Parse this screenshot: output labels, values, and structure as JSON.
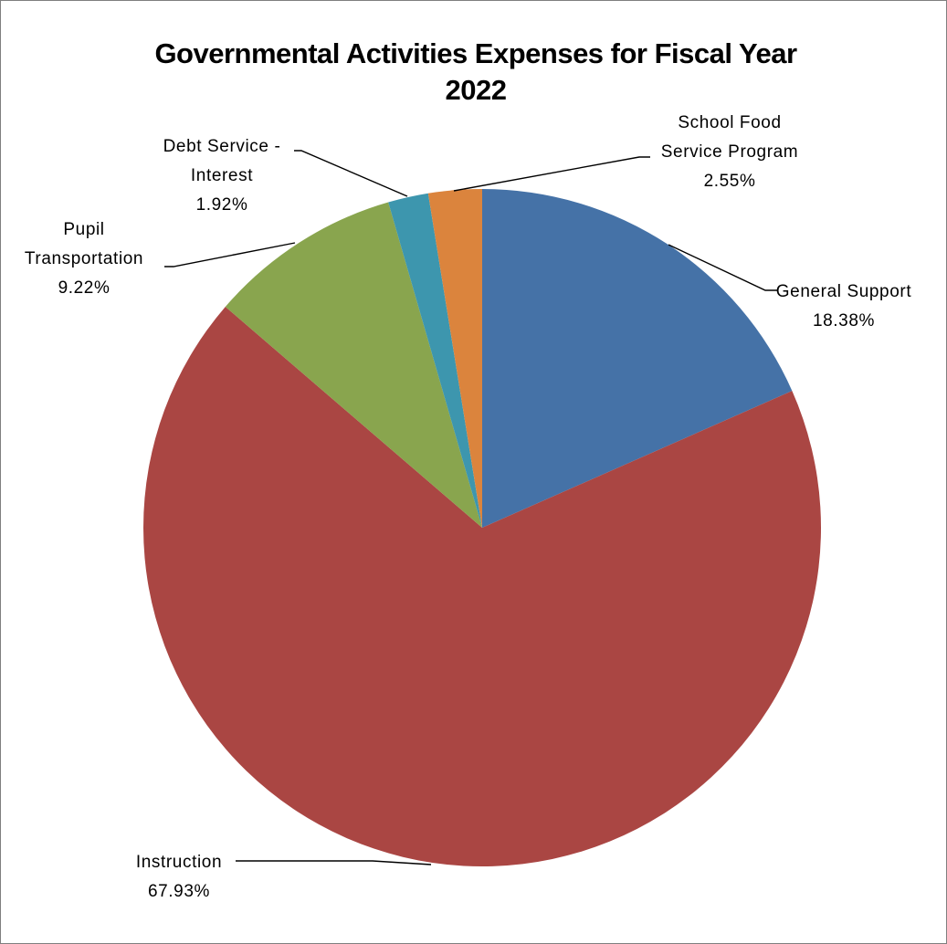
{
  "chart_data": {
    "type": "pie",
    "title": "Governmental Activities Expenses for Fiscal Year 2022",
    "title_lines": [
      "Governmental Activities Expenses for Fiscal Year",
      "2022"
    ],
    "start_angle_deg": 0,
    "direction": "clockwise",
    "slices": [
      {
        "name": "General Support",
        "value": 18.38,
        "label_lines": [
          "General Support"
        ],
        "pct_label": "18.38%",
        "color": "#4572A7"
      },
      {
        "name": "Instruction",
        "value": 67.93,
        "label_lines": [
          "Instruction"
        ],
        "pct_label": "67.93%",
        "color": "#AA4643"
      },
      {
        "name": "Pupil Transportation",
        "value": 9.22,
        "label_lines": [
          "Pupil",
          "Transportation"
        ],
        "pct_label": "9.22%",
        "color": "#89A54E"
      },
      {
        "name": "Debt Service - Interest",
        "value": 1.92,
        "label_lines": [
          "Debt Service -",
          "Interest"
        ],
        "pct_label": "1.92%",
        "color": "#3D96AE"
      },
      {
        "name": "School Food Service Program",
        "value": 2.55,
        "label_lines": [
          "School Food",
          "Service Program"
        ],
        "pct_label": "2.55%",
        "color": "#DB843D"
      }
    ]
  }
}
